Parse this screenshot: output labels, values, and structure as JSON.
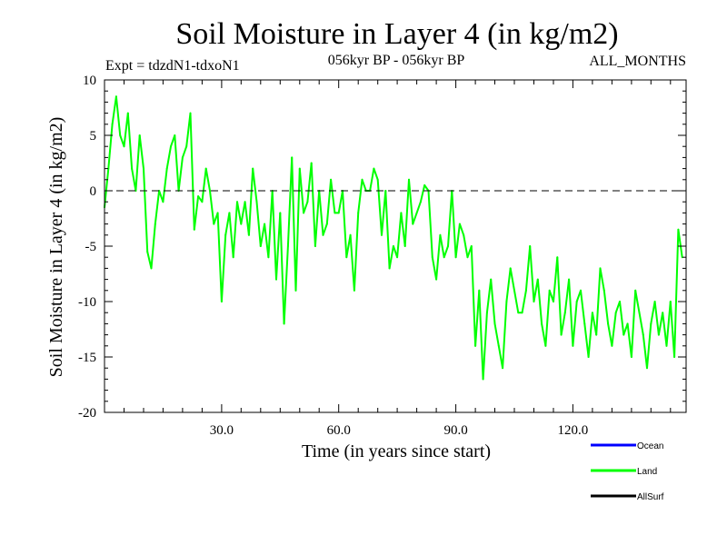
{
  "chart_data": {
    "type": "line",
    "title": "Soil Moisture in Layer 4 (in kg/m2)",
    "subtitle_left": "Expt = tdzdN1-tdxoN1",
    "subtitle_center": "056kyr BP - 056kyr BP",
    "subtitle_right": "ALL_MONTHS",
    "xlabel": "Time (in years since start)",
    "ylabel": "Soil Moisture in Layer 4 (in kg/m2)",
    "xlim": [
      0,
      149
    ],
    "ylim": [
      -20,
      10
    ],
    "x_ticks": [
      30,
      60,
      90,
      120
    ],
    "x_tick_labels": [
      "30.0",
      "60.0",
      "90.0",
      "120.0"
    ],
    "y_ticks": [
      -20,
      -15,
      -10,
      -5,
      0,
      5,
      10
    ],
    "y_tick_labels": [
      "-20",
      "-15",
      "-10",
      "-5",
      "0",
      "5",
      "10"
    ],
    "reference_line": {
      "y": 0,
      "style": "dashed",
      "color": "#000000"
    },
    "legend_position": "bottom-right",
    "series": [
      {
        "name": "Ocean",
        "color": "#0000ff",
        "values": []
      },
      {
        "name": "Land",
        "color": "#00ff00",
        "x_step": 1,
        "x_start": 0,
        "values": [
          -1.5,
          2,
          6,
          8.5,
          5,
          4,
          7,
          2,
          0,
          5,
          2,
          -5.5,
          -7,
          -3,
          0,
          -1,
          2,
          4,
          5,
          0,
          3,
          4,
          7,
          -3.5,
          -0.5,
          -1,
          2,
          0,
          -3,
          -2,
          -10,
          -4,
          -2,
          -6,
          -1,
          -3,
          -1,
          -4,
          2,
          -1,
          -5,
          -3,
          -6,
          0,
          -8,
          -2,
          -12,
          -5,
          3,
          -9,
          2,
          -2,
          -1,
          2.5,
          -5,
          0,
          -4,
          -3,
          1,
          -2,
          -2,
          0,
          -6,
          -4,
          -9,
          -2,
          1,
          0,
          0,
          2,
          1,
          -4,
          0,
          -7,
          -5,
          -6,
          -2,
          -5,
          1,
          -3,
          -2,
          -1,
          0.5,
          0,
          -6,
          -8,
          -4,
          -6,
          -5,
          0,
          -6,
          -3,
          -4,
          -6,
          -5,
          -14,
          -9,
          -17,
          -11,
          -8,
          -12,
          -14,
          -16,
          -10,
          -7,
          -9,
          -11,
          -11,
          -9,
          -5,
          -10,
          -8,
          -12,
          -14,
          -9,
          -10,
          -6,
          -13,
          -11,
          -8,
          -14,
          -10,
          -9,
          -12,
          -15,
          -11,
          -13,
          -7,
          -9,
          -12,
          -14,
          -11,
          -10,
          -13,
          -12,
          -15,
          -9,
          -11,
          -13,
          -16,
          -12,
          -10,
          -13,
          -11,
          -14,
          -10,
          -15,
          -3.5,
          -6
        ]
      },
      {
        "name": "AllSurf",
        "color": "#000000",
        "values": []
      }
    ]
  }
}
